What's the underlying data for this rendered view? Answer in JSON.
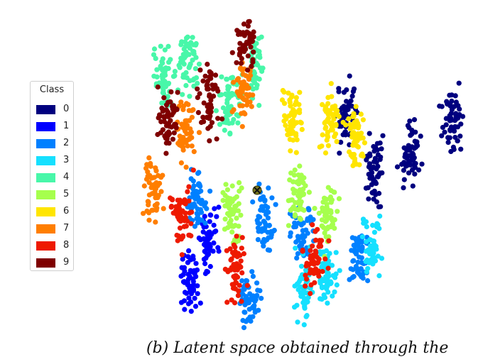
{
  "caption": "(b) Latent space obtained through the",
  "chart_data": {
    "type": "scatter",
    "title": "",
    "xlabel": "",
    "ylabel": "",
    "axes_visible": false,
    "grid": false,
    "legend_title": "Class",
    "legend_position": "left",
    "series": [
      {
        "name": "0",
        "color": "#00007f",
        "centers": [
          [
            578,
            215
          ],
          [
            637,
            172
          ],
          [
            528,
            238
          ],
          [
            488,
            160
          ]
        ]
      },
      {
        "name": "1",
        "color": "#0000ff",
        "centers": [
          [
            293,
            336
          ],
          [
            265,
            393
          ]
        ]
      },
      {
        "name": "2",
        "color": "#0080ff",
        "centers": [
          [
            278,
            280
          ],
          [
            372,
            310
          ],
          [
            426,
            330
          ],
          [
            352,
            423
          ],
          [
            506,
            360
          ]
        ]
      },
      {
        "name": "3",
        "color": "#15e0ff",
        "centers": [
          [
            460,
            385
          ],
          [
            524,
            352
          ],
          [
            428,
            405
          ]
        ]
      },
      {
        "name": "4",
        "color": "#48f7a9",
        "centers": [
          [
            232,
            110
          ],
          [
            266,
            90
          ],
          [
            358,
            95
          ],
          [
            322,
            146
          ]
        ]
      },
      {
        "name": "5",
        "color": "#a6ff4d",
        "centers": [
          [
            462,
            300
          ],
          [
            326,
            304
          ],
          [
            420,
            275
          ]
        ]
      },
      {
        "name": "6",
        "color": "#ffe500",
        "centers": [
          [
            464,
            172
          ],
          [
            502,
            196
          ],
          [
            410,
            168
          ]
        ]
      },
      {
        "name": "7",
        "color": "#ff7e00",
        "centers": [
          [
            262,
            185
          ],
          [
            216,
            270
          ],
          [
            342,
            130
          ]
        ]
      },
      {
        "name": "8",
        "color": "#ee1a00",
        "centers": [
          [
            256,
            305
          ],
          [
            331,
            378
          ],
          [
            442,
            366
          ]
        ]
      },
      {
        "name": "9",
        "color": "#7f0000",
        "centers": [
          [
            236,
            170
          ],
          [
            294,
            140
          ],
          [
            346,
            62
          ]
        ]
      }
    ],
    "marker": {
      "x": 362,
      "y": 268,
      "symbol": "x"
    }
  }
}
